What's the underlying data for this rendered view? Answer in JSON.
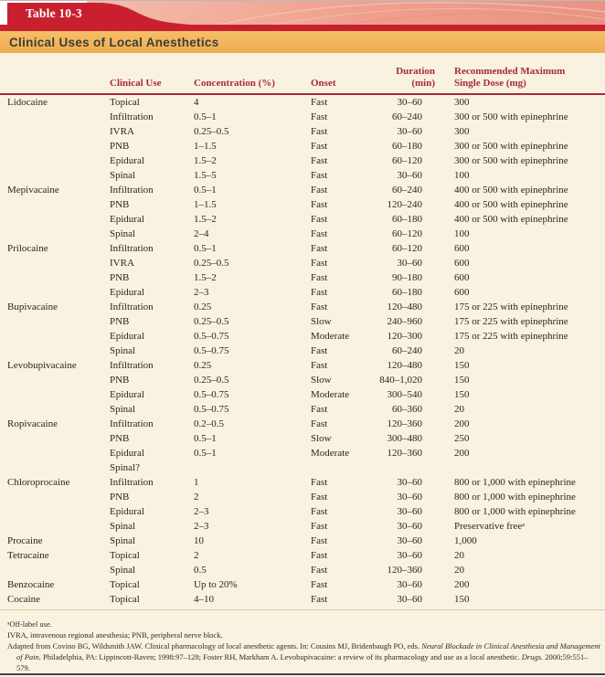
{
  "banner": {
    "tab_label": "Table 10-3",
    "title": "Clinical Uses of Local Anesthetics"
  },
  "columns": {
    "use": "Clinical Use",
    "concentration": "Concentration (%)",
    "onset": "Onset",
    "duration_line1": "Duration",
    "duration_line2": "(min)",
    "dose_line1": "Recommended Maximum",
    "dose_line2": "Single Dose (mg)"
  },
  "rows": [
    {
      "agent": "Lidocaine",
      "use": "Topical",
      "conc": "4",
      "onset": "Fast",
      "dur": "30–60",
      "dose": "300"
    },
    {
      "agent": "",
      "use": "Infiltration",
      "conc": "0.5–1",
      "onset": "Fast",
      "dur": "60–240",
      "dose": "300 or 500 with epinephrine"
    },
    {
      "agent": "",
      "use": "IVRA",
      "conc": "0.25–0.5",
      "onset": "Fast",
      "dur": "30–60",
      "dose": "300"
    },
    {
      "agent": "",
      "use": "PNB",
      "conc": "1–1.5",
      "onset": "Fast",
      "dur": "60–180",
      "dose": "300 or 500 with epinephrine"
    },
    {
      "agent": "",
      "use": "Epidural",
      "conc": "1.5–2",
      "onset": "Fast",
      "dur": "60–120",
      "dose": "300 or 500 with epinephrine"
    },
    {
      "agent": "",
      "use": "Spinal",
      "conc": "1.5–5",
      "onset": "Fast",
      "dur": "30–60",
      "dose": "100"
    },
    {
      "agent": "Mepivacaine",
      "use": "Infiltration",
      "conc": "0.5–1",
      "onset": "Fast",
      "dur": "60–240",
      "dose": "400 or 500 with epinephrine"
    },
    {
      "agent": "",
      "use": "PNB",
      "conc": "1–1.5",
      "onset": "Fast",
      "dur": "120–240",
      "dose": "400 or 500 with epinephrine"
    },
    {
      "agent": "",
      "use": "Epidural",
      "conc": "1.5–2",
      "onset": "Fast",
      "dur": "60–180",
      "dose": "400 or 500 with epinephrine"
    },
    {
      "agent": "",
      "use": "Spinal",
      "conc": "2–4",
      "onset": "Fast",
      "dur": "60–120",
      "dose": "100"
    },
    {
      "agent": "Prilocaine",
      "use": "Infiltration",
      "conc": "0.5–1",
      "onset": "Fast",
      "dur": "60–120",
      "dose": "600"
    },
    {
      "agent": "",
      "use": "IVRA",
      "conc": "0.25–0.5",
      "onset": "Fast",
      "dur": "30–60",
      "dose": "600"
    },
    {
      "agent": "",
      "use": "PNB",
      "conc": "1.5–2",
      "onset": "Fast",
      "dur": "90–180",
      "dose": "600"
    },
    {
      "agent": "",
      "use": "Epidural",
      "conc": "2–3",
      "onset": "Fast",
      "dur": "60–180",
      "dose": "600"
    },
    {
      "agent": "Bupivacaine",
      "use": "Infiltration",
      "conc": "0.25",
      "onset": "Fast",
      "dur": "120–480",
      "dose": "175 or 225 with epinephrine"
    },
    {
      "agent": "",
      "use": "PNB",
      "conc": "0.25–0.5",
      "onset": "Slow",
      "dur": "240–960",
      "dose": "175 or 225 with epinephrine"
    },
    {
      "agent": "",
      "use": "Epidural",
      "conc": "0.5–0.75",
      "onset": "Moderate",
      "dur": "120–300",
      "dose": "175 or 225 with epinephrine"
    },
    {
      "agent": "",
      "use": "Spinal",
      "conc": "0.5–0.75",
      "onset": "Fast",
      "dur": "60–240",
      "dose": "20"
    },
    {
      "agent": "Levobupivacaine",
      "use": "Infiltration",
      "conc": "0.25",
      "onset": "Fast",
      "dur": "120–480",
      "dose": "150"
    },
    {
      "agent": "",
      "use": "PNB",
      "conc": "0.25–0.5",
      "onset": "Slow",
      "dur": "840–1,020",
      "dose": "150"
    },
    {
      "agent": "",
      "use": "Epidural",
      "conc": "0.5–0.75",
      "onset": "Moderate",
      "dur": "300–540",
      "dose": "150"
    },
    {
      "agent": "",
      "use": "Spinal",
      "conc": "0.5–0.75",
      "onset": "Fast",
      "dur": "60–360",
      "dose": "20"
    },
    {
      "agent": "Ropivacaine",
      "use": "Infiltration",
      "conc": "0.2–0.5",
      "onset": "Fast",
      "dur": "120–360",
      "dose": "200"
    },
    {
      "agent": "",
      "use": "PNB",
      "conc": "0.5–1",
      "onset": "Slow",
      "dur": "300–480",
      "dose": "250"
    },
    {
      "agent": "",
      "use": "Epidural",
      "conc": "0.5–1",
      "onset": "Moderate",
      "dur": "120–360",
      "dose": "200"
    },
    {
      "agent": "",
      "use": "Spinal?",
      "conc": "",
      "onset": "",
      "dur": "",
      "dose": ""
    },
    {
      "agent": "Chloroprocaine",
      "use": "Infiltration",
      "conc": "1",
      "onset": "Fast",
      "dur": "30–60",
      "dose": "800 or 1,000 with epinephrine"
    },
    {
      "agent": "",
      "use": "PNB",
      "conc": "2",
      "onset": "Fast",
      "dur": "30–60",
      "dose": "800 or 1,000 with epinephrine"
    },
    {
      "agent": "",
      "use": "Epidural",
      "conc": "2–3",
      "onset": "Fast",
      "dur": "30–60",
      "dose": "800 or 1,000 with epinephrine"
    },
    {
      "agent": "",
      "use": "Spinal",
      "conc": "2–3",
      "onset": "Fast",
      "dur": "30–60",
      "dose": "Preservative freeᵃ"
    },
    {
      "agent": "Procaine",
      "use": "Spinal",
      "conc": "10",
      "onset": "Fast",
      "dur": "30–60",
      "dose": "1,000"
    },
    {
      "agent": "Tetracaine",
      "use": "Topical",
      "conc": "2",
      "onset": "Fast",
      "dur": "30–60",
      "dose": "20"
    },
    {
      "agent": "",
      "use": "Spinal",
      "conc": "0.5",
      "onset": "Fast",
      "dur": "120–360",
      "dose": "20"
    },
    {
      "agent": "Benzocaine",
      "use": "Topical",
      "conc": "Up to 20%",
      "onset": "Fast",
      "dur": "30–60",
      "dose": "200"
    },
    {
      "agent": "Cocaine",
      "use": "Topical",
      "conc": "4–10",
      "onset": "Fast",
      "dur": "30–60",
      "dose": "150"
    }
  ],
  "footnotes": {
    "note1": "ᵃOff-label use.",
    "note2": "IVRA, intravenous regional anesthesia; PNB, peripheral nerve block.",
    "citation_part1": "Adapted from Covino BG, Wildsmith JAW. Clinical pharmacology of local anesthetic agents. In: Cousins MJ, Bridenbaugh PO, eds. ",
    "citation_italic1": "Neural Blockade in Clinical Anesthesia and Management of Pain.",
    "citation_part2": " Philadelphia, PA: Lippincott-Raven; 1998:97–128; Foster RH, Markham A. Levobupivacaine: a review of its pharmacology and use as a local anesthetic. ",
    "citation_italic2": "Drugs.",
    "citation_part3": " 2000;59:551–579."
  },
  "colors": {
    "accent_red": "#c9202f",
    "band_orange": "#f2b55c",
    "pink_band": "#ee9e8d",
    "page_cream": "#f9f2e0",
    "header_text_red": "#a8293c"
  }
}
